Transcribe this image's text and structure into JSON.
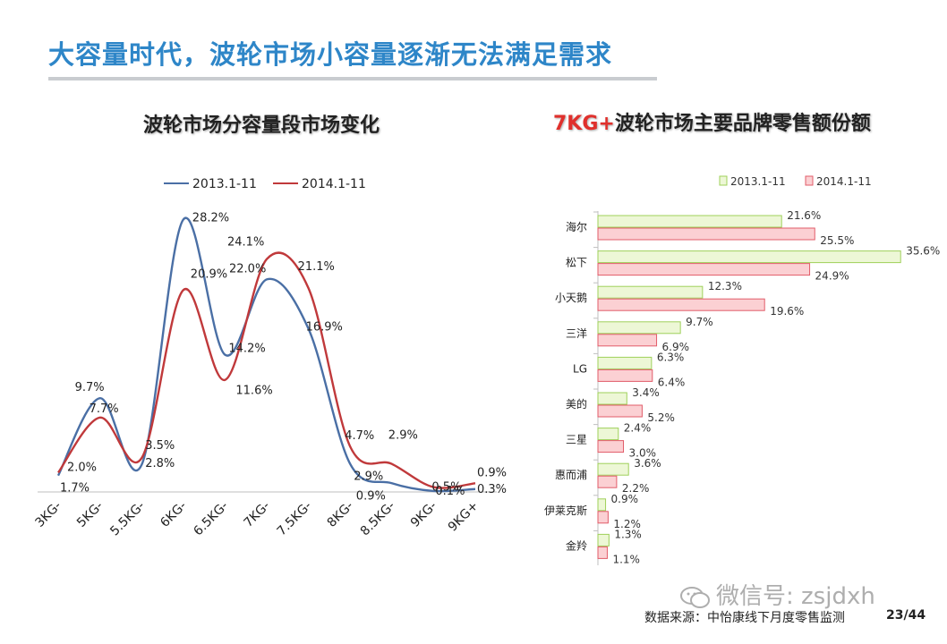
{
  "page": {
    "title": "大容量时代，波轮市场小容量逐渐无法满足需求",
    "source": "数据来源：中怡康线下月度零售监测",
    "page_number": "23/44",
    "watermark": "微信号: zsjdxh"
  },
  "chart_data": [
    {
      "type": "line",
      "title": "波轮市场分容量段市场变化",
      "categories": [
        "3KG-",
        "5KG-",
        "5.5KG-",
        "6KG-",
        "6.5KG-",
        "7KG-",
        "7.5KG-",
        "8KG-",
        "8.5KG-",
        "9KG-",
        "9KG+"
      ],
      "series": [
        {
          "name": "2013.1-11",
          "color": "#4a6fa5",
          "values": [
            1.7,
            9.7,
            2.8,
            28.2,
            14.2,
            22.0,
            16.9,
            2.9,
            0.9,
            0.1,
            0.3
          ],
          "labels": [
            "1.7%",
            "9.7%",
            "2.8%",
            "28.2%",
            "14.2%",
            "22.0%",
            "16.9%",
            "2.9%",
            "0.9%",
            "0.1%",
            "0.3%"
          ]
        },
        {
          "name": "2014.1-11",
          "color": "#c0393b",
          "values": [
            2.0,
            7.7,
            3.5,
            20.9,
            11.6,
            24.1,
            21.1,
            4.7,
            2.9,
            0.5,
            0.9
          ],
          "labels": [
            "2.0%",
            "7.7%",
            "3.5%",
            "20.9%",
            "11.6%",
            "24.1%",
            "21.1%",
            "4.7%",
            "2.9%",
            "0.5%",
            "0.9%"
          ]
        }
      ],
      "ylim": [
        0,
        30
      ],
      "legend": "top"
    },
    {
      "type": "bar",
      "orientation": "horizontal",
      "title": "7KG+波轮市场主要品牌零售额份额",
      "title_prefix": "7KG+",
      "title_rest": "波轮市场主要品牌零售额份额",
      "categories": [
        "海尔",
        "松下",
        "小天鹅",
        "三洋",
        "LG",
        "美的",
        "三星",
        "惠而浦",
        "伊莱克斯",
        "金羚"
      ],
      "series": [
        {
          "name": "2013.1-11",
          "fill": "#edf7d6",
          "stroke": "#9fd05a",
          "values": [
            21.6,
            35.6,
            12.3,
            9.7,
            6.3,
            3.4,
            2.4,
            3.6,
            0.9,
            1.3
          ],
          "labels": [
            "21.6%",
            "35.6%",
            "12.3%",
            "9.7%",
            "6.3%",
            "3.4%",
            "2.4%",
            "3.6%",
            "0.9%",
            "1.3%"
          ]
        },
        {
          "name": "2014.1-11",
          "fill": "#fbd0d3",
          "stroke": "#e25c6a",
          "values": [
            25.5,
            24.9,
            19.6,
            6.9,
            6.4,
            5.2,
            3.0,
            2.2,
            1.2,
            1.1
          ],
          "labels": [
            "25.5%",
            "24.9%",
            "19.6%",
            "6.9%",
            "6.4%",
            "5.2%",
            "3.0%",
            "2.2%",
            "1.2%",
            "1.1%"
          ]
        }
      ],
      "xlim": [
        0,
        36
      ],
      "legend": "top"
    }
  ]
}
